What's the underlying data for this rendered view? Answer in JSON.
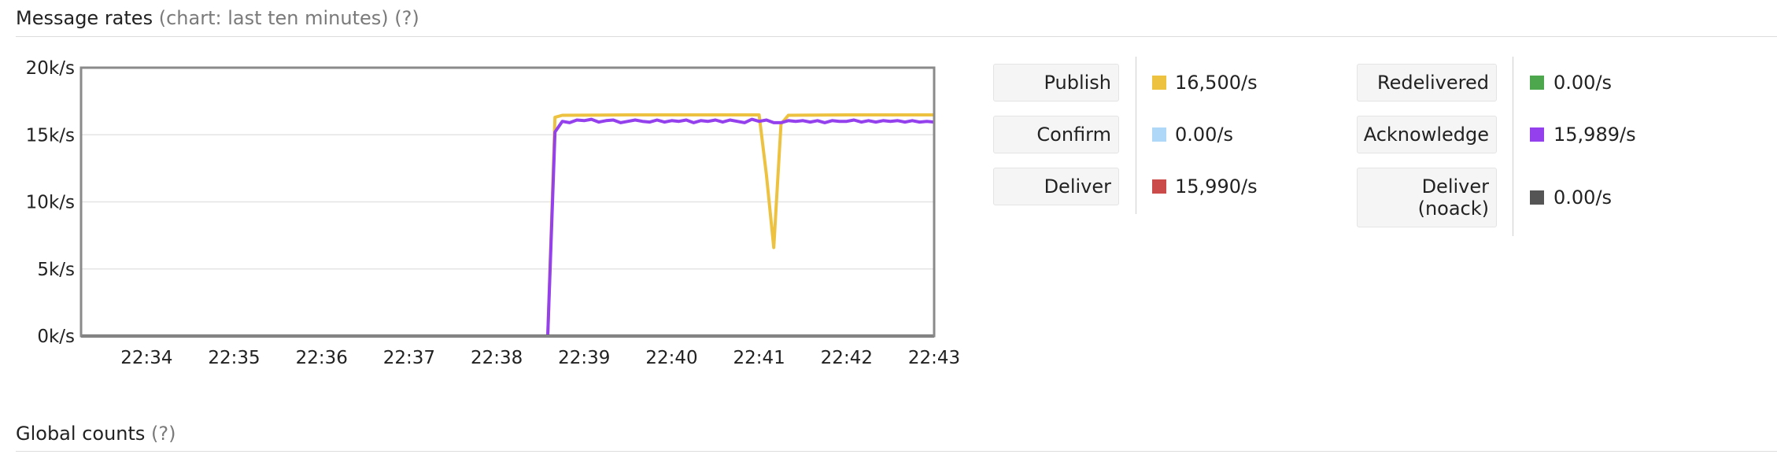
{
  "sections": {
    "message_rates": {
      "title": "Message rates",
      "subtitle": "(chart: last ten minutes)",
      "help": "(?)"
    },
    "global_counts": {
      "title": "Global counts",
      "help": "(?)"
    }
  },
  "legend": {
    "left": [
      {
        "label": "Publish",
        "value": "16,500/s",
        "color": "#EDC240"
      },
      {
        "label": "Confirm",
        "value": "0.00/s",
        "color": "#AFD8F8"
      },
      {
        "label": "Deliver",
        "value": "15,990/s",
        "color": "#CB4B4B"
      }
    ],
    "right": [
      {
        "label": "Redelivered",
        "value": "0.00/s",
        "color": "#4DA74D"
      },
      {
        "label": "Acknowledge",
        "value": "15,989/s",
        "color": "#9440ED"
      },
      {
        "label": "Deliver (noack)",
        "label_lines": [
          "Deliver",
          "(noack)"
        ],
        "value": "0.00/s",
        "color": "#555555"
      }
    ]
  },
  "chart_data": {
    "type": "line",
    "title": "",
    "xlabel": "",
    "ylabel": "",
    "x_ticks": [
      "22:34",
      "22:35",
      "22:36",
      "22:37",
      "22:38",
      "22:39",
      "22:40",
      "22:41",
      "22:42",
      "22:43"
    ],
    "xlim": [
      "22:33:15",
      "22:43:00"
    ],
    "y_ticks": [
      "0k/s",
      "5k/s",
      "10k/s",
      "15k/s",
      "20k/s"
    ],
    "ylim": [
      0,
      20000
    ],
    "grid": true,
    "legend_position": "right",
    "series": [
      {
        "name": "Publish",
        "color": "#EDC240",
        "points": [
          [
            "22:33:15",
            0
          ],
          [
            "22:38:35",
            0
          ],
          [
            "22:38:40",
            16300
          ],
          [
            "22:38:45",
            16450
          ],
          [
            "22:39:30",
            16480
          ],
          [
            "22:40:30",
            16480
          ],
          [
            "22:41:00",
            16480
          ],
          [
            "22:41:05",
            12000
          ],
          [
            "22:41:10",
            6600
          ],
          [
            "22:41:15",
            15800
          ],
          [
            "22:41:20",
            16450
          ],
          [
            "22:42:00",
            16480
          ],
          [
            "22:43:00",
            16480
          ]
        ]
      },
      {
        "name": "Acknowledge",
        "color": "#9440ED",
        "points": [
          [
            "22:33:15",
            0
          ],
          [
            "22:38:35",
            0
          ],
          [
            "22:38:40",
            15200
          ],
          [
            "22:38:45",
            16000
          ],
          [
            "22:38:50",
            15900
          ],
          [
            "22:38:55",
            16100
          ],
          [
            "22:39:00",
            16050
          ],
          [
            "22:39:05",
            16150
          ],
          [
            "22:39:10",
            15950
          ],
          [
            "22:39:15",
            16050
          ],
          [
            "22:39:20",
            16100
          ],
          [
            "22:39:25",
            15900
          ],
          [
            "22:39:30",
            16000
          ],
          [
            "22:39:35",
            16100
          ],
          [
            "22:39:40",
            16000
          ],
          [
            "22:39:45",
            15950
          ],
          [
            "22:39:50",
            16100
          ],
          [
            "22:39:55",
            15950
          ],
          [
            "22:40:00",
            16050
          ],
          [
            "22:40:05",
            16000
          ],
          [
            "22:40:10",
            16100
          ],
          [
            "22:40:15",
            15900
          ],
          [
            "22:40:20",
            16050
          ],
          [
            "22:40:25",
            16000
          ],
          [
            "22:40:30",
            16100
          ],
          [
            "22:40:35",
            15950
          ],
          [
            "22:40:40",
            16100
          ],
          [
            "22:40:45",
            16000
          ],
          [
            "22:40:50",
            15900
          ],
          [
            "22:40:55",
            16150
          ],
          [
            "22:41:00",
            16000
          ],
          [
            "22:41:05",
            16100
          ],
          [
            "22:41:10",
            15900
          ],
          [
            "22:41:15",
            15900
          ],
          [
            "22:41:20",
            16050
          ],
          [
            "22:41:25",
            16000
          ],
          [
            "22:41:30",
            16050
          ],
          [
            "22:41:35",
            15950
          ],
          [
            "22:41:40",
            16050
          ],
          [
            "22:41:45",
            15900
          ],
          [
            "22:41:50",
            16050
          ],
          [
            "22:41:55",
            16000
          ],
          [
            "22:42:00",
            16000
          ],
          [
            "22:42:05",
            16100
          ],
          [
            "22:42:10",
            15950
          ],
          [
            "22:42:15",
            16050
          ],
          [
            "22:42:20",
            15950
          ],
          [
            "22:42:25",
            16050
          ],
          [
            "22:42:30",
            16000
          ],
          [
            "22:42:35",
            16050
          ],
          [
            "22:42:40",
            15950
          ],
          [
            "22:42:45",
            16050
          ],
          [
            "22:42:50",
            15950
          ],
          [
            "22:42:55",
            16000
          ],
          [
            "22:43:00",
            15950
          ]
        ]
      },
      {
        "name": "Redelivered",
        "color": "#4DA74D",
        "points": [
          [
            "22:33:15",
            0
          ],
          [
            "22:43:00",
            0
          ]
        ]
      },
      {
        "name": "Deliver (noack)",
        "color": "#555555",
        "points": [
          [
            "22:33:15",
            0
          ],
          [
            "22:43:00",
            0
          ]
        ]
      }
    ]
  }
}
